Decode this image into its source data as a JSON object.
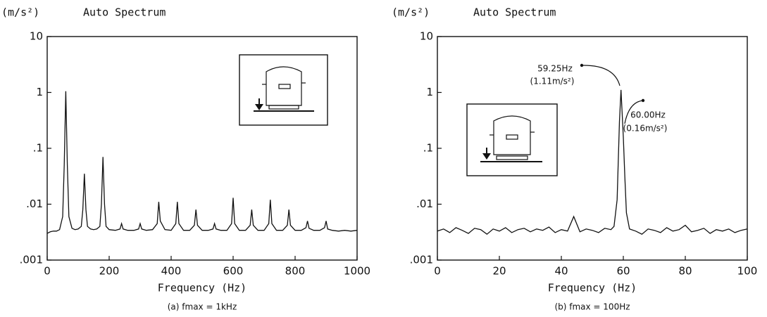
{
  "chart_data": [
    {
      "type": "line",
      "unit_label": "(m/s²)",
      "title": "Auto Spectrum",
      "xlabel": "Frequency (Hz)",
      "caption": "(a) fmax = 1kHz",
      "log_scale_y": true,
      "color": "#111111",
      "xlim": [
        0,
        1000
      ],
      "xticks": [
        0,
        200,
        400,
        600,
        800,
        1000
      ],
      "ylim": [
        0.001,
        10
      ],
      "yticks": [
        10,
        1,
        {
          "value": 0.1,
          "label": ".1"
        },
        {
          "value": 0.01,
          "label": ".01"
        },
        {
          "value": 0.001,
          "label": ".001"
        }
      ],
      "x": [
        0,
        10,
        20,
        30,
        40,
        50,
        55,
        60,
        65,
        70,
        80,
        90,
        100,
        110,
        115,
        120,
        125,
        130,
        140,
        150,
        160,
        170,
        175,
        180,
        185,
        190,
        200,
        220,
        235,
        240,
        245,
        260,
        280,
        295,
        300,
        305,
        320,
        340,
        355,
        360,
        365,
        380,
        400,
        415,
        420,
        425,
        440,
        460,
        475,
        480,
        485,
        500,
        520,
        535,
        540,
        545,
        560,
        580,
        595,
        600,
        605,
        620,
        640,
        655,
        660,
        665,
        680,
        700,
        715,
        720,
        725,
        740,
        760,
        775,
        780,
        785,
        800,
        820,
        835,
        840,
        845,
        860,
        880,
        895,
        900,
        905,
        920,
        940,
        960,
        980,
        1000
      ],
      "values": [
        0.003,
        0.0032,
        0.0033,
        0.0033,
        0.0035,
        0.006,
        0.05,
        1.05,
        0.05,
        0.006,
        0.0037,
        0.0035,
        0.0036,
        0.004,
        0.008,
        0.035,
        0.008,
        0.004,
        0.0036,
        0.0035,
        0.0036,
        0.004,
        0.01,
        0.07,
        0.01,
        0.004,
        0.0035,
        0.0034,
        0.0036,
        0.0045,
        0.0036,
        0.0034,
        0.0034,
        0.0036,
        0.0045,
        0.0036,
        0.0034,
        0.0035,
        0.0045,
        0.011,
        0.005,
        0.0035,
        0.0034,
        0.0045,
        0.011,
        0.0045,
        0.0034,
        0.0034,
        0.0042,
        0.008,
        0.0042,
        0.0034,
        0.0034,
        0.0036,
        0.0045,
        0.0036,
        0.0034,
        0.0034,
        0.0045,
        0.013,
        0.0045,
        0.0034,
        0.0034,
        0.0042,
        0.008,
        0.0042,
        0.0034,
        0.0034,
        0.0045,
        0.012,
        0.0045,
        0.0034,
        0.0034,
        0.0042,
        0.008,
        0.0042,
        0.0034,
        0.0034,
        0.0038,
        0.005,
        0.0037,
        0.0034,
        0.0034,
        0.0038,
        0.005,
        0.0036,
        0.0034,
        0.0033,
        0.0034,
        0.0033,
        0.0034
      ]
    },
    {
      "type": "line",
      "unit_label": "(m/s²)",
      "title": "Auto Spectrum",
      "xlabel": "Frequency (Hz)",
      "caption": "(b) fmax = 100Hz",
      "log_scale_y": true,
      "color": "#111111",
      "xlim": [
        0,
        100
      ],
      "xticks": [
        0,
        20,
        40,
        60,
        80,
        100
      ],
      "ylim": [
        0.001,
        10
      ],
      "yticks": [
        10,
        1,
        {
          "value": 0.1,
          "label": ".1"
        },
        {
          "value": 0.01,
          "label": ".01"
        },
        {
          "value": 0.001,
          "label": ".001"
        }
      ],
      "annotations": [
        [
          "59.25Hz",
          "(1.11m/s²)"
        ],
        [
          "60.00Hz",
          "(0.16m/s²)"
        ]
      ],
      "x": [
        0,
        2,
        4,
        6,
        8,
        10,
        12,
        14,
        16,
        18,
        20,
        22,
        24,
        26,
        28,
        30,
        32,
        34,
        36,
        38,
        40,
        42,
        44,
        46,
        48,
        50,
        52,
        54,
        56,
        57,
        58,
        58.75,
        59.25,
        60,
        60.5,
        61,
        62,
        64,
        66,
        68,
        70,
        72,
        74,
        76,
        78,
        80,
        82,
        84,
        86,
        88,
        90,
        92,
        94,
        96,
        98,
        100
      ],
      "values": [
        0.0033,
        0.0036,
        0.0031,
        0.0038,
        0.0034,
        0.003,
        0.0037,
        0.0035,
        0.0029,
        0.0036,
        0.0033,
        0.0038,
        0.0031,
        0.0035,
        0.0037,
        0.0032,
        0.0036,
        0.0034,
        0.0039,
        0.0031,
        0.0035,
        0.0033,
        0.006,
        0.0032,
        0.0036,
        0.0034,
        0.0031,
        0.0037,
        0.0035,
        0.004,
        0.012,
        0.3,
        1.11,
        0.16,
        0.03,
        0.007,
        0.0036,
        0.0033,
        0.0029,
        0.0036,
        0.0034,
        0.0031,
        0.0038,
        0.0033,
        0.0035,
        0.0042,
        0.0032,
        0.0034,
        0.0037,
        0.003,
        0.0035,
        0.0033,
        0.0036,
        0.0031,
        0.0034,
        0.0036
      ]
    }
  ]
}
